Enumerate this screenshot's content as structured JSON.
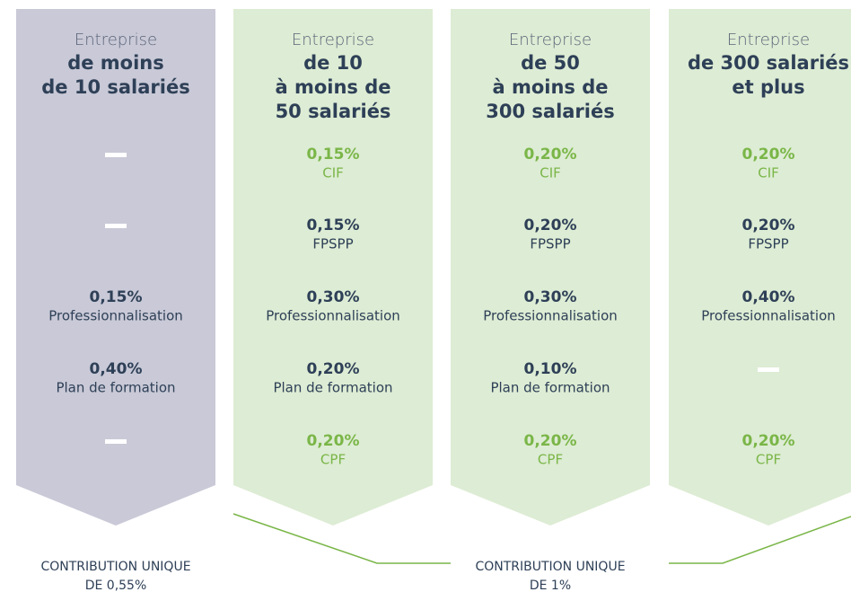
{
  "columns": [
    {
      "heading": "Entreprise",
      "title": [
        "de moins",
        "de 10 salariés"
      ],
      "fill": "#c9c9d7",
      "items": [
        null,
        null,
        {
          "value": "0,15%",
          "label": "Professionnalisation",
          "color": "#2e4057"
        },
        {
          "value": "0,40%",
          "label": "Plan de formation",
          "color": "#2e4057"
        },
        null
      ]
    },
    {
      "heading": "Entreprise",
      "title": [
        "de 10",
        "à moins de",
        "50 salariés"
      ],
      "fill": "#ddecd4",
      "items": [
        {
          "value": "0,15%",
          "label": "CIF",
          "color": "#7ab648"
        },
        {
          "value": "0,15%",
          "label": "FPSPP",
          "color": "#2e4057"
        },
        {
          "value": "0,30%",
          "label": "Professionnalisation",
          "color": "#2e4057"
        },
        {
          "value": "0,20%",
          "label": "Plan de formation",
          "color": "#2e4057"
        },
        {
          "value": "0,20%",
          "label": "CPF",
          "color": "#7ab648"
        }
      ]
    },
    {
      "heading": "Entreprise",
      "title": [
        "de 50",
        "à moins de",
        "300 salariés"
      ],
      "fill": "#ddecd4",
      "items": [
        {
          "value": "0,20%",
          "label": "CIF",
          "color": "#7ab648"
        },
        {
          "value": "0,20%",
          "label": "FPSPP",
          "color": "#2e4057"
        },
        {
          "value": "0,30%",
          "label": "Professionnalisation",
          "color": "#2e4057"
        },
        {
          "value": "0,10%",
          "label": "Plan de formation",
          "color": "#2e4057"
        },
        {
          "value": "0,20%",
          "label": "CPF",
          "color": "#7ab648"
        }
      ]
    },
    {
      "heading": "Entreprise",
      "title": [
        "de 300 salariés",
        "et plus"
      ],
      "fill": "#ddecd4",
      "items": [
        {
          "value": "0,20%",
          "label": "CIF",
          "color": "#7ab648"
        },
        {
          "value": "0,20%",
          "label": "FPSPP",
          "color": "#2e4057"
        },
        {
          "value": "0,40%",
          "label": "Professionnalisation",
          "color": "#2e4057"
        },
        null,
        {
          "value": "0,20%",
          "label": "CPF",
          "color": "#7ab648"
        }
      ]
    }
  ],
  "contributions": [
    {
      "lines": [
        "CONTRIBUTION UNIQUE",
        "DE 0,55%"
      ]
    },
    {
      "lines": [
        "CONTRIBUTION UNIQUE",
        "DE 1%"
      ]
    }
  ]
}
